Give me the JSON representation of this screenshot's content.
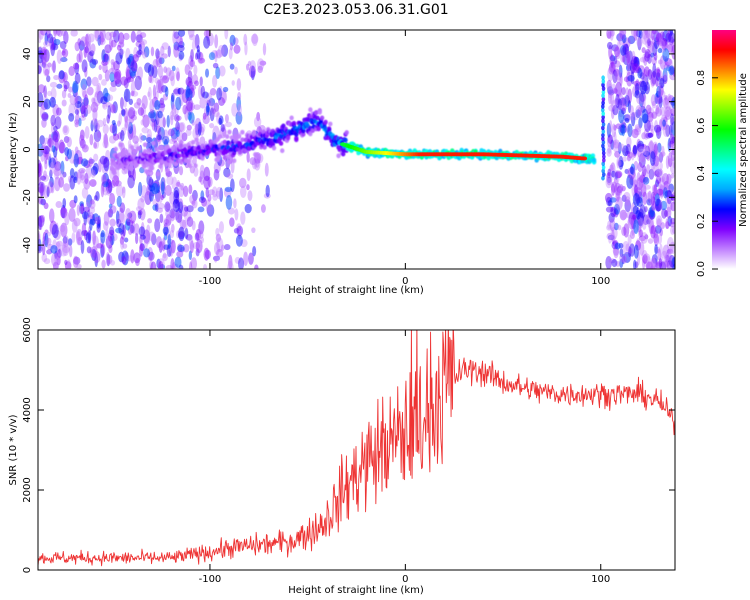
{
  "title": "C2E3.2023.053.06.31.G01",
  "chart_data": [
    {
      "type": "heatmap",
      "title": "C2E3.2023.053.06.31.G01",
      "xlabel": "Height of straight line (km)",
      "ylabel": "Frequency (Hz)",
      "xlim": [
        -188,
        138
      ],
      "ylim": [
        -50,
        50
      ],
      "xticks": [
        -100,
        0,
        100
      ],
      "yticks": [
        -40,
        -20,
        0,
        20,
        40
      ],
      "grid": false,
      "colorbar": {
        "label": "Normalized spectral amplitude",
        "range": [
          0,
          1
        ],
        "ticks": [
          0.0,
          0.2,
          0.4,
          0.6,
          0.8
        ],
        "colors": [
          "#ffffff",
          "#c080ff",
          "#7f00ff",
          "#0000ff",
          "#00aaff",
          "#00ffff",
          "#00ff80",
          "#00ff00",
          "#80ff00",
          "#ffff00",
          "#ff8000",
          "#ff0000",
          "#ff0080"
        ]
      },
      "ridge": {
        "x": [
          -150,
          -125,
          -100,
          -80,
          -60,
          -45,
          -35,
          -20,
          0,
          40,
          80,
          95
        ],
        "y": [
          -5,
          -3,
          0,
          2,
          7,
          12,
          3,
          -1,
          -2,
          -2,
          -3,
          -4
        ]
      }
    },
    {
      "type": "line",
      "xlabel": "Height of straight line (km)",
      "ylabel": "SNR (10 * v/v)",
      "xlim": [
        -188,
        138
      ],
      "ylim": [
        0,
        6000
      ],
      "xticks": [
        -100,
        0,
        100
      ],
      "yticks": [
        0,
        2000,
        4000,
        6000
      ],
      "grid": false,
      "color": "#ee3333",
      "series": [
        {
          "x": [
            -188,
            -160,
            -140,
            -120,
            -100,
            -90,
            -80,
            -70,
            -60,
            -50,
            -45,
            -40,
            -35,
            -30,
            -25,
            -20,
            -15,
            -10,
            -5,
            0,
            5,
            10,
            15,
            20,
            25,
            30,
            35,
            40,
            50,
            60,
            70,
            80,
            90,
            100,
            110,
            120,
            130,
            138
          ],
          "y": [
            300,
            300,
            300,
            300,
            450,
            550,
            600,
            650,
            700,
            900,
            1050,
            1300,
            1700,
            2100,
            2400,
            2700,
            2900,
            3100,
            3200,
            3400,
            3600,
            3900,
            4300,
            4600,
            4800,
            5000,
            5000,
            4950,
            4700,
            4550,
            4450,
            4400,
            4400,
            4400,
            4400,
            4400,
            4200,
            3700
          ]
        }
      ]
    }
  ]
}
